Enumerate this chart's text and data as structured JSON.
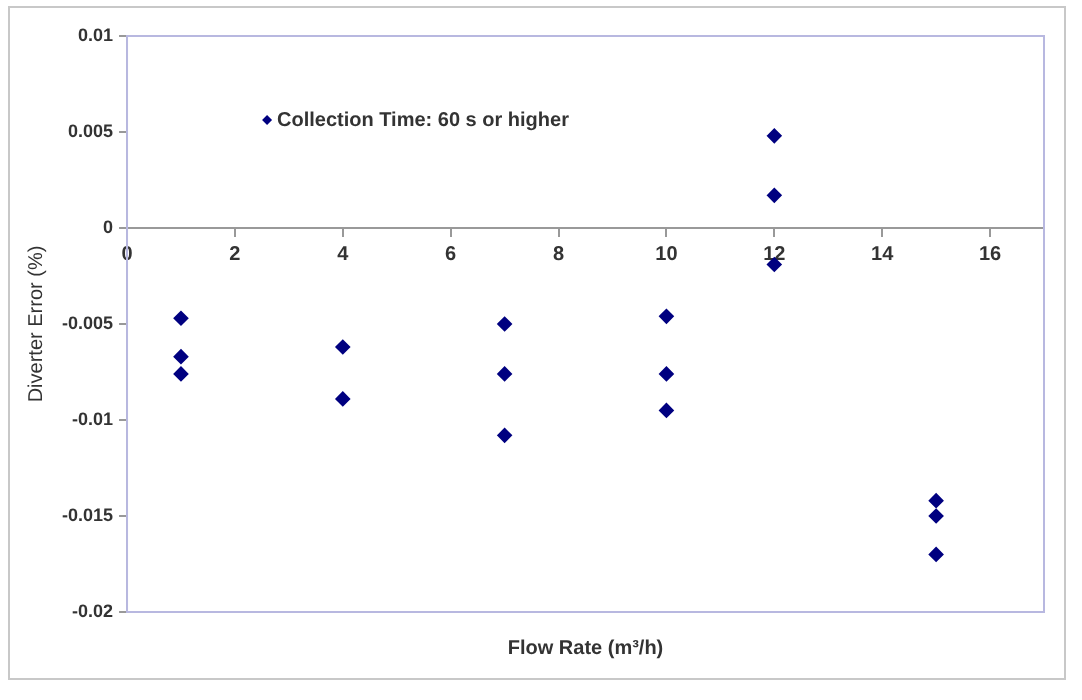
{
  "chart_data": {
    "type": "scatter",
    "xlabel": "Flow Rate (m³/h)",
    "ylabel": "Diverter Error (%)",
    "xlim": [
      0,
      17
    ],
    "xticks": [
      0,
      2,
      4,
      6,
      8,
      10,
      12,
      14,
      16
    ],
    "ylim": [
      -0.02,
      0.01
    ],
    "yticks": [
      -0.02,
      -0.015,
      -0.01,
      -0.005,
      0,
      0.005,
      0.01
    ],
    "grid": false,
    "legend": "top left",
    "marker": "diamond",
    "series": [
      {
        "name": "Collection Time: 60 s or higher",
        "color": "#000080",
        "x": [
          1,
          1,
          1,
          4,
          4,
          7,
          7,
          7,
          10,
          10,
          10,
          12,
          12,
          12,
          15,
          15,
          15
        ],
        "values": [
          -0.0047,
          -0.0067,
          -0.0076,
          -0.0062,
          -0.0089,
          -0.005,
          -0.0076,
          -0.0108,
          -0.0046,
          -0.0076,
          -0.0095,
          0.0048,
          0.0017,
          -0.0019,
          -0.0142,
          -0.015,
          -0.017
        ]
      }
    ]
  }
}
